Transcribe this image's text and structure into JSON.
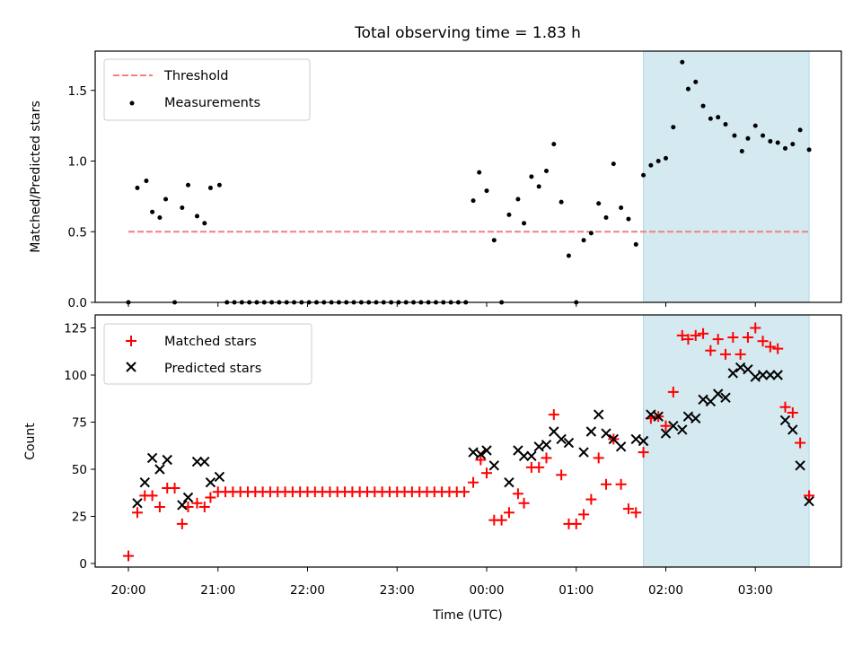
{
  "chart_data": [
    {
      "type": "scatter",
      "title": "Total observing time = 1.83 h",
      "xlabel": "",
      "ylabel": "Matched/Predicted stars",
      "ylim": [
        0,
        1.8
      ],
      "yticks": [
        "0.0",
        "0.5",
        "1.0",
        "1.5"
      ],
      "highlight": {
        "x_start": "01:45",
        "x_end": "03:36",
        "color": "#d4e9f0"
      },
      "threshold": {
        "name": "Threshold",
        "value": 0.5,
        "x_start": "20:00",
        "x_end": "03:36",
        "color": "#f47f7f"
      },
      "legend_position": "upper left",
      "series": [
        {
          "name": "Measurements",
          "color": "#000000",
          "points": [
            [
              "20:00",
              0.0
            ],
            [
              "20:06",
              0.81
            ],
            [
              "20:12",
              0.86
            ],
            [
              "20:16",
              0.64
            ],
            [
              "20:21",
              0.6
            ],
            [
              "20:25",
              0.73
            ],
            [
              "20:31",
              0.0
            ],
            [
              "20:36",
              0.67
            ],
            [
              "20:40",
              0.83
            ],
            [
              "20:46",
              0.61
            ],
            [
              "20:51",
              0.56
            ],
            [
              "20:55",
              0.81
            ],
            [
              "21:01",
              0.83
            ],
            [
              "21:06",
              0.0
            ],
            [
              "21:11",
              0.0
            ],
            [
              "21:16",
              0.0
            ],
            [
              "21:21",
              0.0
            ],
            [
              "21:26",
              0.0
            ],
            [
              "21:31",
              0.0
            ],
            [
              "21:36",
              0.0
            ],
            [
              "21:41",
              0.0
            ],
            [
              "21:46",
              0.0
            ],
            [
              "21:51",
              0.0
            ],
            [
              "21:56",
              0.0
            ],
            [
              "22:01",
              0.0
            ],
            [
              "22:06",
              0.0
            ],
            [
              "22:11",
              0.0
            ],
            [
              "22:16",
              0.0
            ],
            [
              "22:21",
              0.0
            ],
            [
              "22:26",
              0.0
            ],
            [
              "22:31",
              0.0
            ],
            [
              "22:36",
              0.0
            ],
            [
              "22:41",
              0.0
            ],
            [
              "22:46",
              0.0
            ],
            [
              "22:51",
              0.0
            ],
            [
              "22:56",
              0.0
            ],
            [
              "23:01",
              0.0
            ],
            [
              "23:06",
              0.0
            ],
            [
              "23:11",
              0.0
            ],
            [
              "23:16",
              0.0
            ],
            [
              "23:21",
              0.0
            ],
            [
              "23:26",
              0.0
            ],
            [
              "23:31",
              0.0
            ],
            [
              "23:36",
              0.0
            ],
            [
              "23:41",
              0.0
            ],
            [
              "23:46",
              0.0
            ],
            [
              "23:51",
              0.72
            ],
            [
              "23:55",
              0.92
            ],
            [
              "00:00",
              0.79
            ],
            [
              "00:05",
              0.44
            ],
            [
              "00:10",
              0.0
            ],
            [
              "00:15",
              0.62
            ],
            [
              "00:21",
              0.73
            ],
            [
              "00:25",
              0.56
            ],
            [
              "00:30",
              0.89
            ],
            [
              "00:35",
              0.82
            ],
            [
              "00:40",
              0.93
            ],
            [
              "00:45",
              1.12
            ],
            [
              "00:50",
              0.71
            ],
            [
              "00:55",
              0.33
            ],
            [
              "01:00",
              0.0
            ],
            [
              "01:05",
              0.44
            ],
            [
              "01:10",
              0.49
            ],
            [
              "01:15",
              0.7
            ],
            [
              "01:20",
              0.6
            ],
            [
              "01:25",
              0.98
            ],
            [
              "01:30",
              0.67
            ],
            [
              "01:35",
              0.59
            ],
            [
              "01:40",
              0.41
            ],
            [
              "01:45",
              0.9
            ],
            [
              "01:50",
              0.97
            ],
            [
              "01:55",
              1.0
            ],
            [
              "02:00",
              1.02
            ],
            [
              "02:05",
              1.24
            ],
            [
              "02:11",
              1.7
            ],
            [
              "02:15",
              1.51
            ],
            [
              "02:20",
              1.56
            ],
            [
              "02:25",
              1.39
            ],
            [
              "02:30",
              1.3
            ],
            [
              "02:35",
              1.31
            ],
            [
              "02:40",
              1.26
            ],
            [
              "02:46",
              1.18
            ],
            [
              "02:51",
              1.07
            ],
            [
              "02:55",
              1.16
            ],
            [
              "03:00",
              1.25
            ],
            [
              "03:05",
              1.18
            ],
            [
              "03:10",
              1.14
            ],
            [
              "03:15",
              1.13
            ],
            [
              "03:20",
              1.09
            ],
            [
              "03:25",
              1.12
            ],
            [
              "03:30",
              1.22
            ],
            [
              "03:36",
              1.08
            ]
          ]
        }
      ]
    },
    {
      "type": "scatter",
      "title": "",
      "xlabel": "Time (UTC)",
      "ylabel": "Count",
      "ylim": [
        -2,
        132
      ],
      "yticks": [
        "0",
        "25",
        "50",
        "75",
        "100",
        "125"
      ],
      "xticks": [
        "20:00",
        "21:00",
        "22:00",
        "23:00",
        "00:00",
        "01:00",
        "02:00",
        "03:00"
      ],
      "highlight": {
        "x_start": "01:45",
        "x_end": "03:36",
        "color": "#d4e9f0"
      },
      "legend_position": "upper left",
      "series": [
        {
          "name": "Matched stars",
          "marker": "+",
          "color": "#ff0000",
          "points": [
            [
              "20:00",
              4
            ],
            [
              "20:06",
              27
            ],
            [
              "20:11",
              36
            ],
            [
              "20:16",
              36
            ],
            [
              "20:21",
              30
            ],
            [
              "20:26",
              40
            ],
            [
              "20:31",
              40
            ],
            [
              "20:36",
              21
            ],
            [
              "20:40",
              30
            ],
            [
              "20:46",
              32
            ],
            [
              "20:51",
              30
            ],
            [
              "20:55",
              35
            ],
            [
              "21:00",
              38
            ],
            [
              "21:05",
              38
            ],
            [
              "21:10",
              38
            ],
            [
              "21:15",
              38
            ],
            [
              "21:20",
              38
            ],
            [
              "21:25",
              38
            ],
            [
              "21:30",
              38
            ],
            [
              "21:35",
              38
            ],
            [
              "21:40",
              38
            ],
            [
              "21:45",
              38
            ],
            [
              "21:50",
              38
            ],
            [
              "21:55",
              38
            ],
            [
              "22:00",
              38
            ],
            [
              "22:05",
              38
            ],
            [
              "22:10",
              38
            ],
            [
              "22:15",
              38
            ],
            [
              "22:20",
              38
            ],
            [
              "22:25",
              38
            ],
            [
              "22:30",
              38
            ],
            [
              "22:35",
              38
            ],
            [
              "22:40",
              38
            ],
            [
              "22:45",
              38
            ],
            [
              "22:50",
              38
            ],
            [
              "22:55",
              38
            ],
            [
              "23:00",
              38
            ],
            [
              "23:05",
              38
            ],
            [
              "23:10",
              38
            ],
            [
              "23:15",
              38
            ],
            [
              "23:20",
              38
            ],
            [
              "23:25",
              38
            ],
            [
              "23:30",
              38
            ],
            [
              "23:35",
              38
            ],
            [
              "23:40",
              38
            ],
            [
              "23:45",
              38
            ],
            [
              "23:51",
              43
            ],
            [
              "23:56",
              55
            ],
            [
              "00:00",
              48
            ],
            [
              "00:05",
              23
            ],
            [
              "00:10",
              23
            ],
            [
              "00:15",
              27
            ],
            [
              "00:21",
              37
            ],
            [
              "00:25",
              32
            ],
            [
              "00:30",
              51
            ],
            [
              "00:35",
              51
            ],
            [
              "00:40",
              56
            ],
            [
              "00:45",
              79
            ],
            [
              "00:50",
              47
            ],
            [
              "00:55",
              21
            ],
            [
              "01:00",
              21
            ],
            [
              "01:05",
              26
            ],
            [
              "01:10",
              34
            ],
            [
              "01:15",
              56
            ],
            [
              "01:20",
              42
            ],
            [
              "01:25",
              66
            ],
            [
              "01:30",
              42
            ],
            [
              "01:35",
              29
            ],
            [
              "01:40",
              27
            ],
            [
              "01:45",
              59
            ],
            [
              "01:50",
              77
            ],
            [
              "01:55",
              78
            ],
            [
              "02:00",
              73
            ],
            [
              "02:05",
              91
            ],
            [
              "02:11",
              121
            ],
            [
              "02:15",
              119
            ],
            [
              "02:20",
              121
            ],
            [
              "02:25",
              122
            ],
            [
              "02:30",
              113
            ],
            [
              "02:35",
              119
            ],
            [
              "02:40",
              111
            ],
            [
              "02:45",
              120
            ],
            [
              "02:50",
              111
            ],
            [
              "02:55",
              120
            ],
            [
              "03:00",
              125
            ],
            [
              "03:05",
              118
            ],
            [
              "03:10",
              115
            ],
            [
              "03:15",
              114
            ],
            [
              "03:20",
              83
            ],
            [
              "03:25",
              80
            ],
            [
              "03:30",
              64
            ],
            [
              "03:36",
              36
            ]
          ]
        },
        {
          "name": "Predicted stars",
          "marker": "x",
          "color": "#000000",
          "points": [
            [
              "20:06",
              32
            ],
            [
              "20:11",
              43
            ],
            [
              "20:16",
              56
            ],
            [
              "20:21",
              50
            ],
            [
              "20:26",
              55
            ],
            [
              "20:36",
              31
            ],
            [
              "20:40",
              35
            ],
            [
              "20:46",
              54
            ],
            [
              "20:51",
              54
            ],
            [
              "20:55",
              43
            ],
            [
              "21:01",
              46
            ],
            [
              "23:51",
              59
            ],
            [
              "23:56",
              58
            ],
            [
              "00:00",
              60
            ],
            [
              "00:05",
              52
            ],
            [
              "00:15",
              43
            ],
            [
              "00:21",
              60
            ],
            [
              "00:25",
              57
            ],
            [
              "00:30",
              57
            ],
            [
              "00:35",
              62
            ],
            [
              "00:40",
              63
            ],
            [
              "00:45",
              70
            ],
            [
              "00:50",
              66
            ],
            [
              "00:55",
              64
            ],
            [
              "01:05",
              59
            ],
            [
              "01:10",
              70
            ],
            [
              "01:15",
              79
            ],
            [
              "01:20",
              69
            ],
            [
              "01:25",
              66
            ],
            [
              "01:30",
              62
            ],
            [
              "01:40",
              66
            ],
            [
              "01:45",
              65
            ],
            [
              "01:50",
              79
            ],
            [
              "01:55",
              78
            ],
            [
              "02:00",
              69
            ],
            [
              "02:05",
              73
            ],
            [
              "02:11",
              71
            ],
            [
              "02:15",
              78
            ],
            [
              "02:20",
              77
            ],
            [
              "02:25",
              87
            ],
            [
              "02:30",
              86
            ],
            [
              "02:35",
              90
            ],
            [
              "02:40",
              88
            ],
            [
              "02:45",
              101
            ],
            [
              "02:50",
              104
            ],
            [
              "02:55",
              103
            ],
            [
              "03:00",
              99
            ],
            [
              "03:05",
              100
            ],
            [
              "03:10",
              100
            ],
            [
              "03:15",
              100
            ],
            [
              "03:20",
              76
            ],
            [
              "03:25",
              71
            ],
            [
              "03:30",
              52
            ],
            [
              "03:36",
              33
            ]
          ]
        }
      ]
    }
  ]
}
